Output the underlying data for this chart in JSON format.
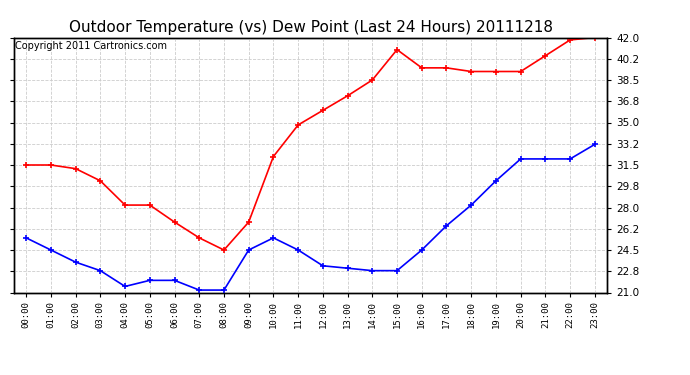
{
  "title": "Outdoor Temperature (vs) Dew Point (Last 24 Hours) 20111218",
  "copyright_text": "Copyright 2011 Cartronics.com",
  "x_labels": [
    "00:00",
    "01:00",
    "02:00",
    "03:00",
    "04:00",
    "05:00",
    "06:00",
    "07:00",
    "08:00",
    "09:00",
    "10:00",
    "11:00",
    "12:00",
    "13:00",
    "14:00",
    "15:00",
    "16:00",
    "17:00",
    "18:00",
    "19:00",
    "20:00",
    "21:00",
    "22:00",
    "23:00"
  ],
  "temp_data": [
    25.5,
    24.5,
    23.5,
    22.8,
    21.5,
    22.0,
    22.0,
    21.2,
    21.2,
    24.5,
    25.5,
    24.5,
    23.2,
    23.0,
    22.8,
    22.8,
    24.5,
    26.5,
    28.2,
    30.2,
    32.0,
    32.0,
    32.0,
    33.2
  ],
  "dew_data": [
    31.5,
    31.5,
    31.2,
    30.2,
    28.2,
    28.2,
    26.8,
    25.5,
    24.5,
    26.8,
    32.2,
    34.8,
    36.0,
    37.2,
    38.5,
    41.0,
    39.5,
    39.5,
    39.2,
    39.2,
    39.2,
    40.5,
    41.8,
    42.0
  ],
  "ylim": [
    21.0,
    42.0
  ],
  "yticks": [
    21.0,
    22.8,
    24.5,
    26.2,
    28.0,
    29.8,
    31.5,
    33.2,
    35.0,
    36.8,
    38.5,
    40.2,
    42.0
  ],
  "temp_color": "#0000ff",
  "dew_color": "#ff0000",
  "bg_color": "#ffffff",
  "grid_color": "#cccccc",
  "title_fontsize": 11,
  "copyright_fontsize": 7
}
